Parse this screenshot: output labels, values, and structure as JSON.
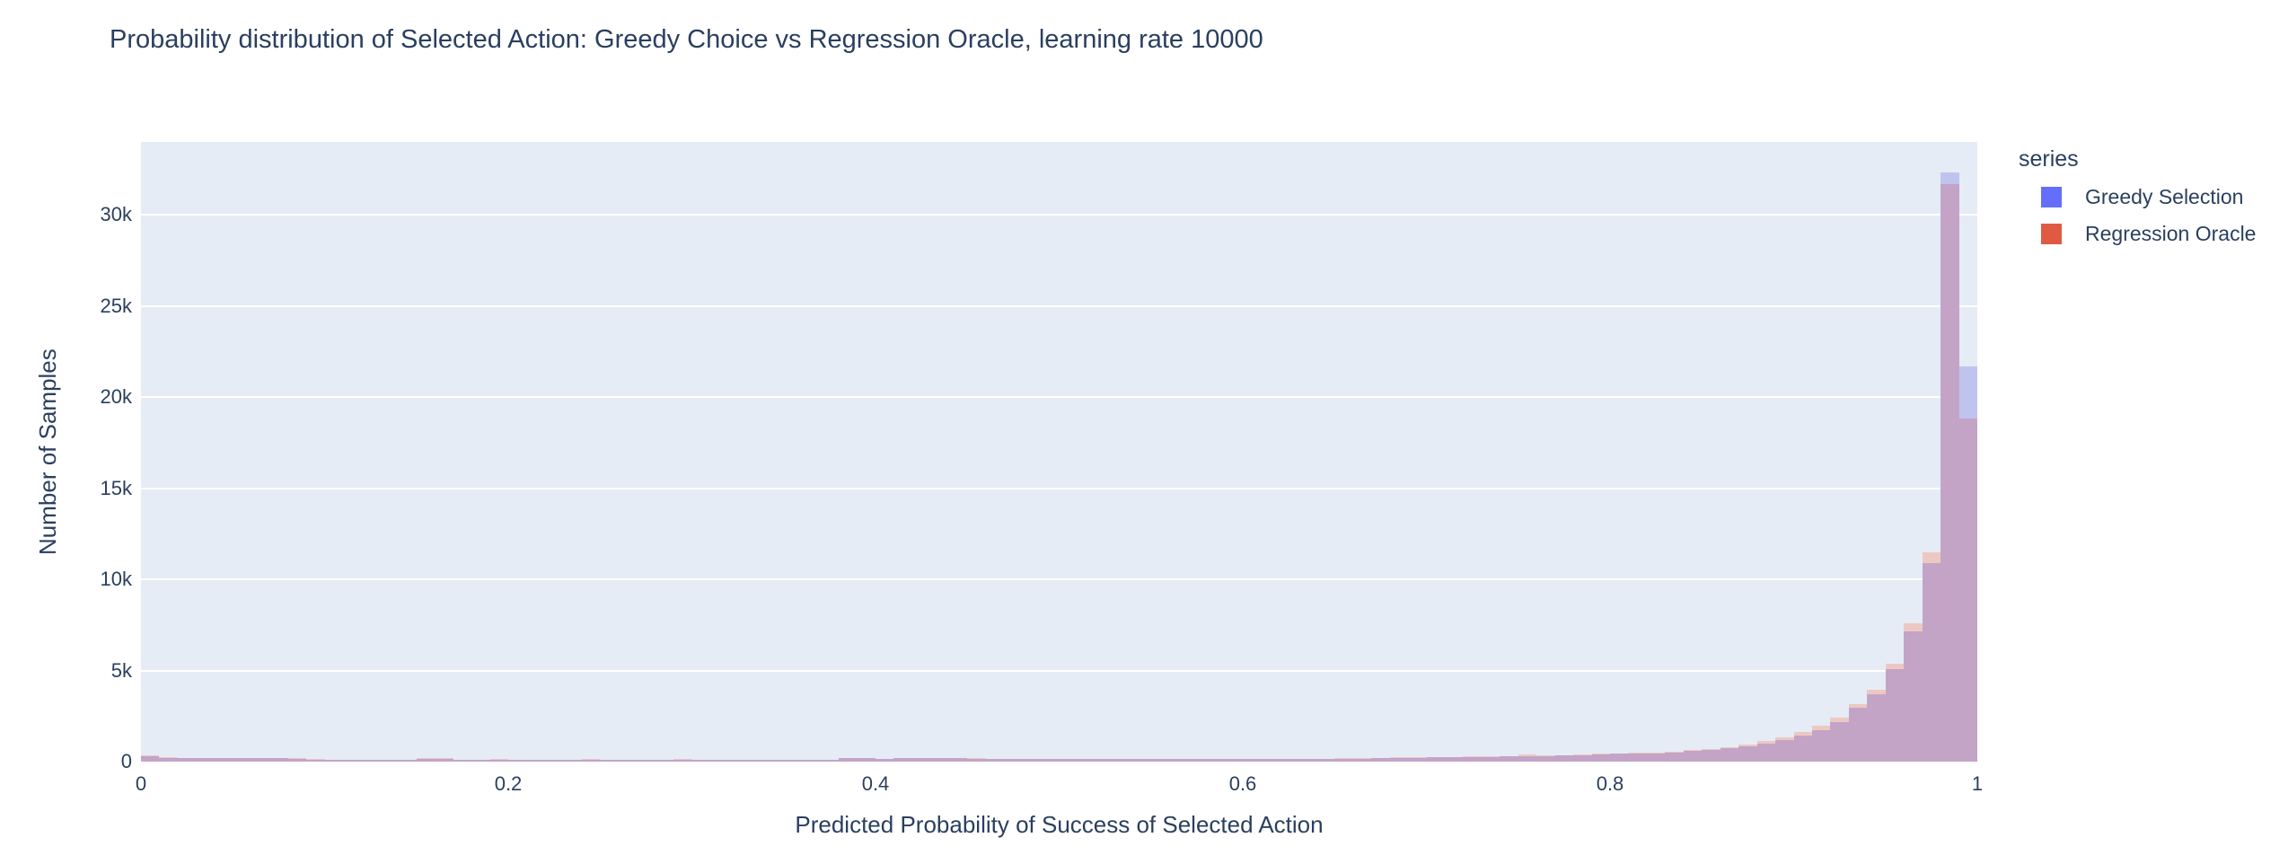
{
  "title": "Probability distribution of Selected Action: Greedy Choice vs Regression Oracle, learning rate 10000",
  "xaxis": {
    "title": "Predicted Probability of Success of Selected Action",
    "ticks": [
      {
        "value": 0,
        "label": "0"
      },
      {
        "value": 0.2,
        "label": "0.2"
      },
      {
        "value": 0.4,
        "label": "0.4"
      },
      {
        "value": 0.6,
        "label": "0.6"
      },
      {
        "value": 0.8,
        "label": "0.8"
      },
      {
        "value": 1,
        "label": "1"
      }
    ]
  },
  "yaxis": {
    "title": "Number of Samples",
    "ticks": [
      {
        "value": 0,
        "label": "0"
      },
      {
        "value": 5000,
        "label": "5k"
      },
      {
        "value": 10000,
        "label": "10k"
      },
      {
        "value": 15000,
        "label": "15k"
      },
      {
        "value": 20000,
        "label": "20k"
      },
      {
        "value": 25000,
        "label": "25k"
      },
      {
        "value": 30000,
        "label": "30k"
      }
    ]
  },
  "legend": {
    "title": "series",
    "items": [
      {
        "label": "Greedy Selection",
        "color": "#636EFA"
      },
      {
        "label": "Regression Oracle",
        "color": "#E05A43"
      }
    ]
  },
  "chart_data": {
    "type": "histogram",
    "barmode": "overlay",
    "title": "Probability distribution of Selected Action: Greedy Choice vs Regression Oracle, learning rate 10000",
    "xlabel": "Predicted Probability of Success of Selected Action",
    "ylabel": "Number of Samples",
    "xlim": [
      0,
      1
    ],
    "ylim": [
      0,
      34000
    ],
    "bin_start": 0,
    "bin_size": 0.01,
    "n_bins": 100,
    "grid": "horizontal white gridlines every 5k, no vertical gridlines",
    "legend_position": "right-top",
    "plot_bg": "#E5ECF6",
    "overlap_fill": "#C3A4C7",
    "series": [
      {
        "name": "Greedy Selection",
        "color": "#636EFA",
        "fill_alone": "#BFC4EE",
        "values": [
          310,
          215,
          205,
          200,
          195,
          190,
          185,
          180,
          170,
          120,
          110,
          105,
          100,
          100,
          100,
          165,
          170,
          100,
          95,
          95,
          85,
          85,
          85,
          85,
          95,
          85,
          85,
          85,
          85,
          95,
          85,
          85,
          85,
          85,
          85,
          85,
          90,
          95,
          175,
          185,
          155,
          195,
          195,
          185,
          185,
          165,
          145,
          145,
          145,
          145,
          140,
          140,
          135,
          135,
          135,
          135,
          140,
          140,
          145,
          145,
          150,
          150,
          155,
          155,
          160,
          165,
          170,
          175,
          180,
          185,
          240,
          250,
          260,
          270,
          285,
          300,
          315,
          330,
          350,
          380,
          420,
          440,
          465,
          505,
          570,
          625,
          730,
          850,
          980,
          1180,
          1440,
          1720,
          2170,
          2940,
          3710,
          5060,
          7150,
          10900,
          32300,
          21700
        ]
      },
      {
        "name": "Regression Oracle",
        "color": "#E05A43",
        "fill_alone": "#EDC8C3",
        "values": [
          335,
          225,
          215,
          210,
          205,
          200,
          195,
          190,
          180,
          130,
          120,
          115,
          110,
          110,
          110,
          175,
          180,
          110,
          105,
          155,
          95,
          95,
          95,
          95,
          165,
          95,
          95,
          95,
          95,
          155,
          95,
          95,
          95,
          95,
          95,
          95,
          100,
          105,
          185,
          195,
          165,
          205,
          205,
          195,
          195,
          175,
          155,
          155,
          155,
          155,
          150,
          150,
          145,
          145,
          145,
          145,
          150,
          150,
          155,
          155,
          160,
          160,
          165,
          165,
          170,
          180,
          185,
          195,
          235,
          260,
          260,
          270,
          285,
          295,
          310,
          400,
          340,
          360,
          385,
          450,
          455,
          475,
          500,
          545,
          620,
          680,
          800,
          950,
          1120,
          1340,
          1630,
          1960,
          2390,
          3170,
          3960,
          5360,
          7600,
          11500,
          31700,
          18800
        ]
      }
    ]
  }
}
